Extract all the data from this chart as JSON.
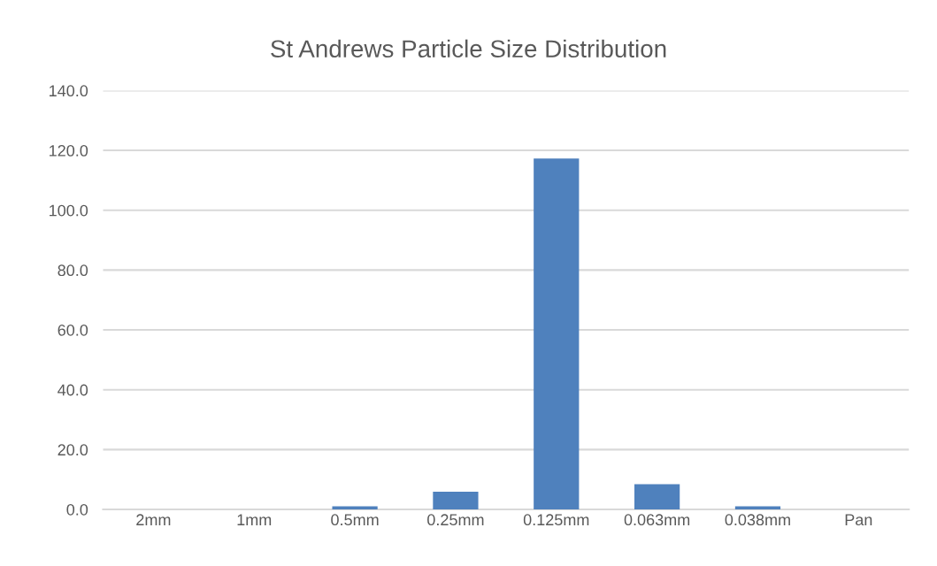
{
  "chart_data": {
    "type": "bar",
    "title": "St Andrews Particle Size Distribution",
    "categories": [
      "2mm",
      "1mm",
      "0.5mm",
      "0.25mm",
      "0.125mm",
      "0.063mm",
      "0.038mm",
      "Pan"
    ],
    "values": [
      0,
      0,
      1.0,
      5.9,
      117.3,
      8.4,
      1.0,
      0
    ],
    "color": "#4f81bd",
    "ylim": [
      0,
      140
    ],
    "yticks": [
      {
        "value": 0,
        "label": "0.0"
      },
      {
        "value": 20,
        "label": "20.0"
      },
      {
        "value": 40,
        "label": "40.0"
      },
      {
        "value": 60,
        "label": "60.0"
      },
      {
        "value": 80,
        "label": "80.0"
      },
      {
        "value": 100,
        "label": "100.0"
      },
      {
        "value": 120,
        "label": "120.0"
      },
      {
        "value": 140,
        "label": "140.0"
      }
    ],
    "grid": "y"
  }
}
